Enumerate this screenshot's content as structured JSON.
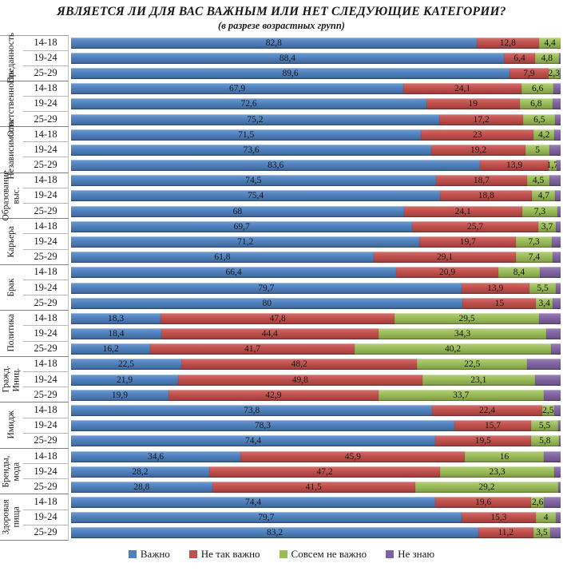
{
  "chart_data": {
    "type": "bar",
    "variant": "horizontal-stacked-100",
    "title": "ЯВЛЯЕТСЯ ЛИ ДЛЯ ВАС ВАЖНЫМ ИЛИ НЕТ СЛЕДУЮЩИЕ КАТЕГОРИИ?",
    "subtitle": "(в разрезе возрастных групп)",
    "xlim": [
      0,
      100
    ],
    "grid": false,
    "legend_position": "bottom",
    "value_decimal_separator": ",",
    "series_names": [
      "Важно",
      "Не так важно",
      "Совсем не важно",
      "Не знаю"
    ],
    "colors": {
      "vazhno": "#4F81BD",
      "ne_tak_vazhno": "#C0504D",
      "sovsem_ne_vazhno": "#9BBB59",
      "ne_znayu": "#8064A2"
    },
    "legend": [
      {
        "label": "Важно",
        "color": "#4F81BD"
      },
      {
        "label": "Не так важно",
        "color": "#C0504D"
      },
      {
        "label": "Совсем не важно",
        "color": "#9BBB59"
      },
      {
        "label": "Не знаю",
        "color": "#8064A2"
      }
    ],
    "age_groups": [
      "14-18",
      "19-24",
      "25-29"
    ],
    "groups": [
      {
        "category": "Преданность",
        "rows": [
          {
            "age": "14-18",
            "values": [
              82.8,
              12.8,
              4.4,
              0.0
            ],
            "labels": [
              "82,8",
              "12,8",
              "4,4",
              ""
            ]
          },
          {
            "age": "19-24",
            "values": [
              88.4,
              6.4,
              4.8,
              0.4
            ],
            "labels": [
              "88,4",
              "6,4",
              "4,8",
              ""
            ]
          },
          {
            "age": "25-29",
            "values": [
              89.6,
              7.9,
              2.3,
              0.2
            ],
            "labels": [
              "89,6",
              "7,9",
              "2,3",
              ""
            ]
          }
        ]
      },
      {
        "category": "Ответственность",
        "rows": [
          {
            "age": "14-18",
            "values": [
              67.9,
              24.1,
              6.6,
              1.4
            ],
            "labels": [
              "67,9",
              "24,1",
              "6,6",
              ""
            ]
          },
          {
            "age": "19-24",
            "values": [
              72.6,
              19.0,
              6.8,
              1.6
            ],
            "labels": [
              "72,6",
              "19",
              "6,8",
              ""
            ]
          },
          {
            "age": "25-29",
            "values": [
              75.2,
              17.2,
              6.5,
              1.1
            ],
            "labels": [
              "75,2",
              "17,2",
              "6,5",
              ""
            ]
          }
        ]
      },
      {
        "category": "Независимость",
        "rows": [
          {
            "age": "14-18",
            "values": [
              71.5,
              23.0,
              4.2,
              1.3
            ],
            "labels": [
              "71,5",
              "23",
              "4,2",
              ""
            ]
          },
          {
            "age": "19-24",
            "values": [
              73.6,
              19.2,
              5.0,
              2.2
            ],
            "labels": [
              "73,6",
              "19,2",
              "5",
              ""
            ]
          },
          {
            "age": "25-29",
            "values": [
              83.6,
              13.9,
              1.7,
              0.8
            ],
            "labels": [
              "83,6",
              "13,9",
              "1,7",
              ""
            ]
          }
        ]
      },
      {
        "category": "Образование выс.",
        "rows": [
          {
            "age": "14-18",
            "values": [
              74.5,
              18.7,
              4.5,
              2.3
            ],
            "labels": [
              "74,5",
              "18,7",
              "4,5",
              ""
            ]
          },
          {
            "age": "19-24",
            "values": [
              75.4,
              18.8,
              4.7,
              1.1
            ],
            "labels": [
              "75,4",
              "18,8",
              "4,7",
              ""
            ]
          },
          {
            "age": "25-29",
            "values": [
              68.0,
              24.1,
              7.3,
              0.6
            ],
            "labels": [
              "68",
              "24,1",
              "7,3",
              ""
            ]
          }
        ]
      },
      {
        "category": "Карьера",
        "rows": [
          {
            "age": "14-18",
            "values": [
              69.7,
              25.7,
              3.7,
              0.9
            ],
            "labels": [
              "69,7",
              "25,7",
              "3,7",
              ""
            ]
          },
          {
            "age": "19-24",
            "values": [
              71.2,
              19.7,
              7.3,
              1.8
            ],
            "labels": [
              "71,2",
              "19,7",
              "7,3",
              ""
            ]
          },
          {
            "age": "25-29",
            "values": [
              61.8,
              29.1,
              7.4,
              1.7
            ],
            "labels": [
              "61,8",
              "29,1",
              "7,4",
              ""
            ]
          }
        ]
      },
      {
        "category": "Брак",
        "rows": [
          {
            "age": "14-18",
            "values": [
              66.4,
              20.9,
              8.4,
              4.3
            ],
            "labels": [
              "66,4",
              "20,9",
              "8,4",
              ""
            ]
          },
          {
            "age": "19-24",
            "values": [
              79.7,
              13.9,
              5.5,
              0.9
            ],
            "labels": [
              "79,7",
              "13,9",
              "5,5",
              ""
            ]
          },
          {
            "age": "25-29",
            "values": [
              80.0,
              15.0,
              3.4,
              1.6
            ],
            "labels": [
              "80",
              "15",
              "3,4",
              ""
            ]
          }
        ]
      },
      {
        "category": "Политика",
        "rows": [
          {
            "age": "14-18",
            "values": [
              18.3,
              47.8,
              29.5,
              4.4
            ],
            "labels": [
              "18,3",
              "47,8",
              "29,5",
              ""
            ]
          },
          {
            "age": "19-24",
            "values": [
              18.4,
              44.4,
              34.3,
              2.9
            ],
            "labels": [
              "18,4",
              "44,4",
              "34,3",
              ""
            ]
          },
          {
            "age": "25-29",
            "values": [
              16.2,
              41.7,
              40.2,
              1.9
            ],
            "labels": [
              "16,2",
              "41,7",
              "40,2",
              ""
            ]
          }
        ]
      },
      {
        "category": "Гражд. Иниц.",
        "rows": [
          {
            "age": "14-18",
            "values": [
              22.5,
              48.2,
              22.5,
              6.8
            ],
            "labels": [
              "22,5",
              "48,2",
              "22,5",
              ""
            ]
          },
          {
            "age": "19-24",
            "values": [
              21.9,
              49.8,
              23.1,
              5.2
            ],
            "labels": [
              "21,9",
              "49,8",
              "23,1",
              ""
            ]
          },
          {
            "age": "25-29",
            "values": [
              19.9,
              42.9,
              33.7,
              3.5
            ],
            "labels": [
              "19,9",
              "42,9",
              "33,7",
              ""
            ]
          }
        ]
      },
      {
        "category": "Имидж",
        "rows": [
          {
            "age": "14-18",
            "values": [
              73.8,
              22.4,
              2.5,
              1.3
            ],
            "labels": [
              "73,8",
              "22,4",
              "2,5",
              ""
            ]
          },
          {
            "age": "19-24",
            "values": [
              78.3,
              15.7,
              5.5,
              0.5
            ],
            "labels": [
              "78,3",
              "15,7",
              "5,5",
              ""
            ]
          },
          {
            "age": "25-29",
            "values": [
              74.4,
              19.5,
              5.8,
              0.3
            ],
            "labels": [
              "74,4",
              "19,5",
              "5,8",
              ""
            ]
          }
        ]
      },
      {
        "category": "Бренды, мода",
        "rows": [
          {
            "age": "14-18",
            "values": [
              34.6,
              45.9,
              16.0,
              3.5
            ],
            "labels": [
              "34,6",
              "45,9",
              "16",
              ""
            ]
          },
          {
            "age": "19-24",
            "values": [
              28.2,
              47.2,
              23.3,
              1.3
            ],
            "labels": [
              "28,2",
              "47,2",
              "23,3",
              ""
            ]
          },
          {
            "age": "25-29",
            "values": [
              28.8,
              41.5,
              29.2,
              0.5
            ],
            "labels": [
              "28,8",
              "41,5",
              "29,2",
              ""
            ]
          }
        ]
      },
      {
        "category": "Здоровая пища",
        "rows": [
          {
            "age": "14-18",
            "values": [
              74.4,
              19.6,
              2.6,
              3.4
            ],
            "labels": [
              "74,4",
              "19,6",
              "2,6",
              ""
            ]
          },
          {
            "age": "19-24",
            "values": [
              79.7,
              15.3,
              4.0,
              1.0
            ],
            "labels": [
              "79,7",
              "15,3",
              "4",
              ""
            ]
          },
          {
            "age": "25-29",
            "values": [
              83.2,
              11.2,
              3.5,
              2.1
            ],
            "labels": [
              "83,2",
              "11,2",
              "3,5",
              ""
            ]
          }
        ]
      }
    ]
  }
}
